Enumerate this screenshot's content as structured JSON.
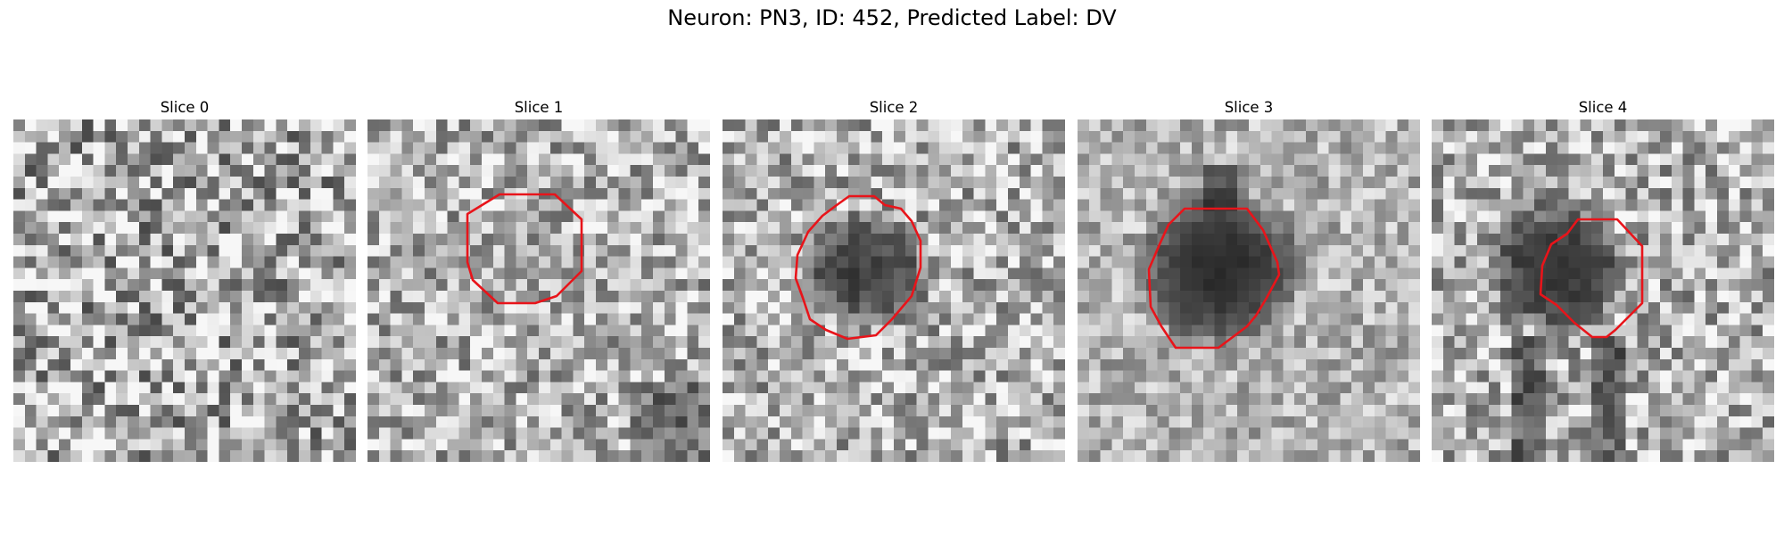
{
  "figure": {
    "title": "Neuron: PN3, ID: 452, Predicted Label: DV"
  },
  "colors": {
    "contour": "#e8141a",
    "colormap": "gray"
  },
  "panels": [
    {
      "title": "Slice 0",
      "has_contour": false,
      "dark_level": 0.0,
      "noise": "high"
    },
    {
      "title": "Slice 1",
      "has_contour": true,
      "dark_level": 0.15,
      "noise": "medium"
    },
    {
      "title": "Slice 2",
      "has_contour": true,
      "dark_level": 0.75,
      "noise": "medium"
    },
    {
      "title": "Slice 3",
      "has_contour": true,
      "dark_level": 0.9,
      "noise": "low"
    },
    {
      "title": "Slice 4",
      "has_contour": true,
      "dark_level": 0.85,
      "noise": "medium"
    }
  ]
}
